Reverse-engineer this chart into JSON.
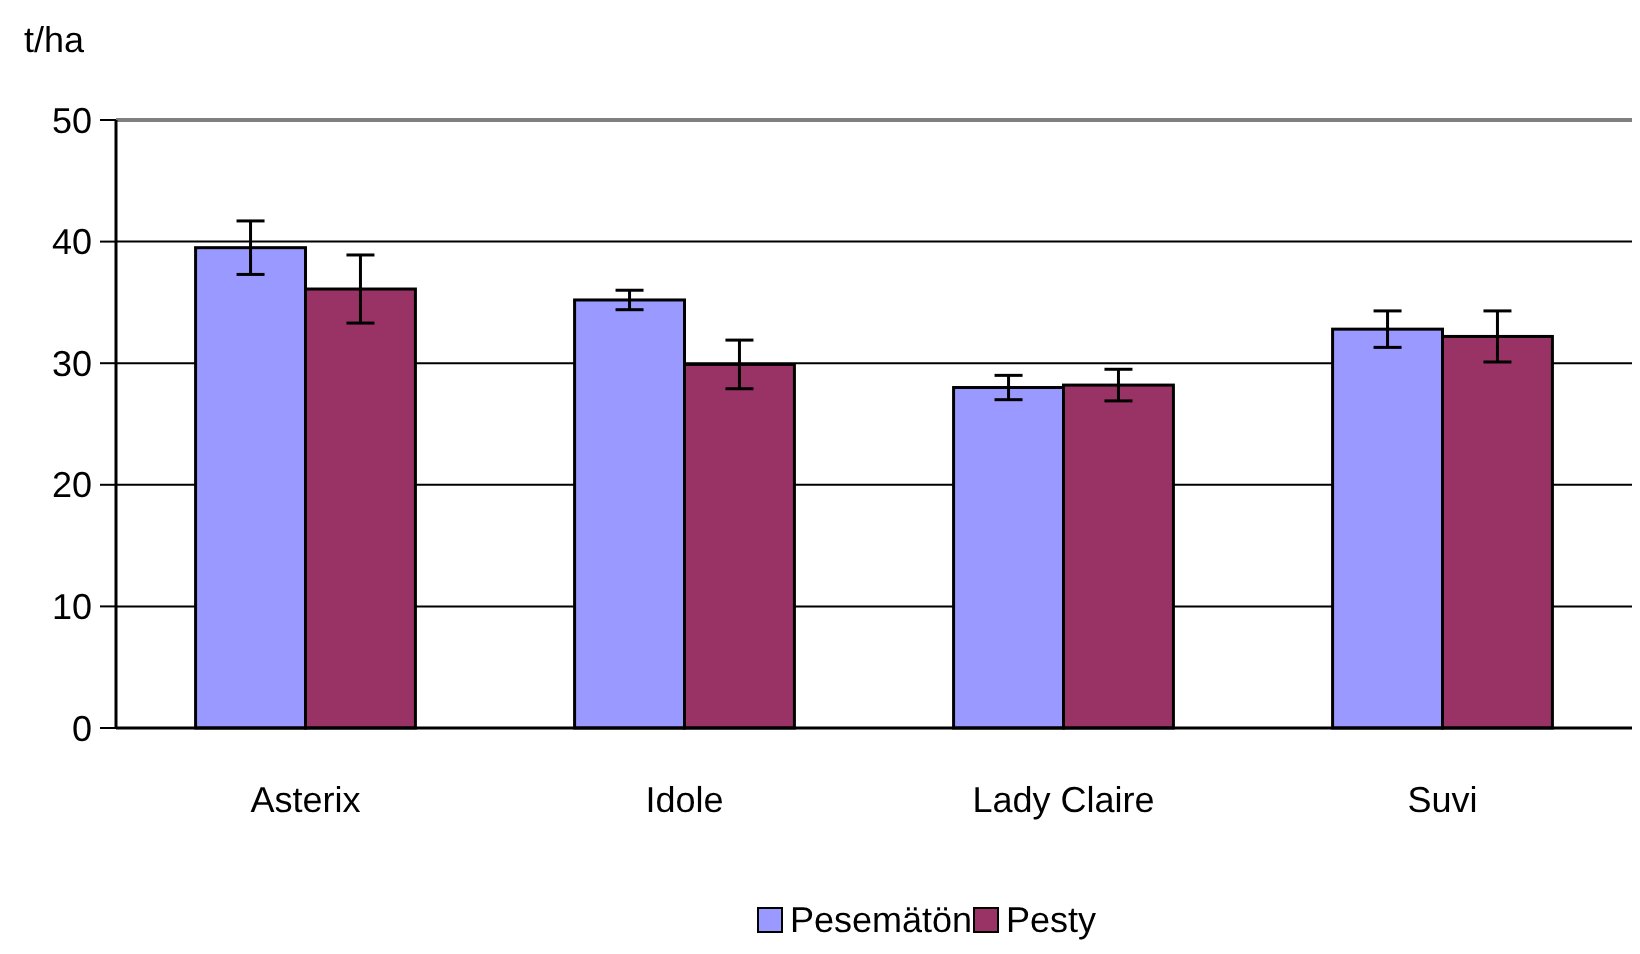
{
  "chart_data": {
    "type": "bar",
    "ylabel": "t/ha",
    "categories": [
      "Asterix",
      "Idole",
      "Lady Claire",
      "Suvi"
    ],
    "series": [
      {
        "name": "Pesemätön",
        "color": "#9999ff",
        "values": [
          39.5,
          35.2,
          28.0,
          32.8
        ],
        "errors": [
          2.2,
          0.8,
          1.0,
          1.5
        ]
      },
      {
        "name": "Pesty",
        "color": "#993366",
        "values": [
          36.1,
          29.9,
          28.2,
          32.2
        ],
        "errors": [
          2.8,
          2.0,
          1.3,
          2.1
        ]
      }
    ],
    "ylim": [
      0,
      50
    ],
    "yticks": [
      0,
      10,
      20,
      30,
      40,
      50
    ],
    "grid": "y",
    "legend": "bottom"
  }
}
